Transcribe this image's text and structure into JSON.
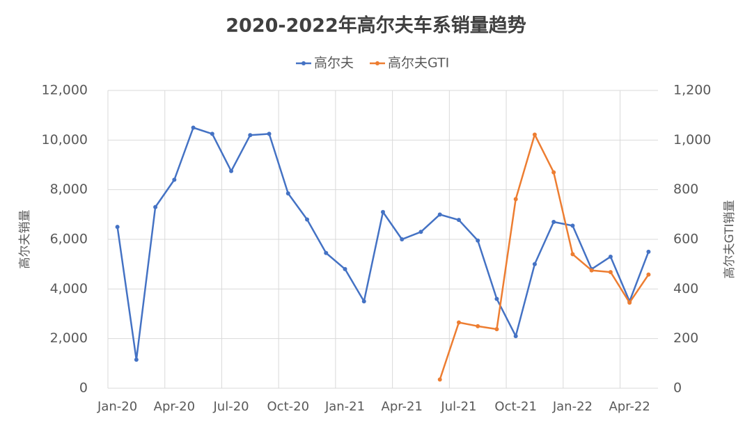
{
  "chart_data": {
    "type": "line",
    "title": "2020-2022年高尔夫车系销量趋势",
    "categories": [
      "Jan-20",
      null,
      null,
      "Apr-20",
      null,
      null,
      "Jul-20",
      null,
      null,
      "Oct-20",
      null,
      null,
      "Jan-21",
      null,
      null,
      "Apr-21",
      null,
      null,
      "Jul-21",
      null,
      null,
      "Oct-21",
      null,
      null,
      "Jan-22",
      null,
      null,
      "Apr-22",
      null
    ],
    "series": [
      {
        "name": "高尔夫",
        "color": "#4472c4",
        "values": [
          6500,
          1150,
          7300,
          8400,
          10500,
          10250,
          8750,
          10200,
          10250,
          7850,
          6800,
          5450,
          4800,
          3500,
          7100,
          6000,
          6300,
          7000,
          6780,
          5950,
          3600,
          2100,
          5000,
          6700,
          6550,
          4800,
          5300,
          3500,
          5500
        ]
      },
      {
        "name": "高尔夫GTI",
        "color": "#ed7d31",
        "axis": "y2",
        "values": [
          null,
          null,
          null,
          null,
          null,
          null,
          null,
          null,
          null,
          null,
          null,
          null,
          null,
          null,
          null,
          null,
          null,
          35,
          265,
          250,
          238,
          762,
          1022,
          870,
          540,
          475,
          468,
          345,
          458
        ]
      }
    ],
    "y_label": "高尔夫销量",
    "y2_label": "高尔夫GTI销量",
    "ylim": [
      0,
      12000
    ],
    "yticks": [
      0,
      {
        "value": 2000,
        "label": "2,000"
      },
      {
        "value": 4000,
        "label": "4,000"
      },
      {
        "value": 6000,
        "label": "6,000"
      },
      {
        "value": 8000,
        "label": "8,000"
      },
      {
        "value": 10000,
        "label": "10,000"
      },
      {
        "value": 12000,
        "label": "12,000"
      }
    ],
    "y2lim": [
      0,
      1200
    ],
    "y2ticks": [
      0,
      200,
      400,
      600,
      800,
      {
        "value": 1000,
        "label": "1,000"
      },
      {
        "value": 1200,
        "label": "1,200"
      }
    ],
    "grid": true,
    "legend": "top"
  }
}
